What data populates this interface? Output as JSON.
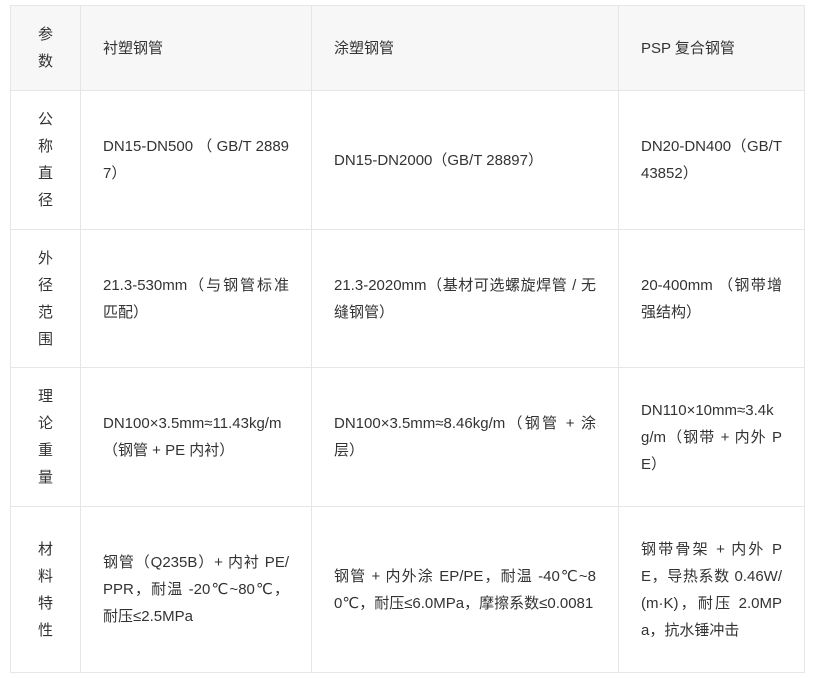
{
  "table": {
    "headers": [
      "参数",
      "衬塑钢管",
      "涂塑钢管",
      "PSP 复合钢管"
    ],
    "rows": [
      {
        "param": "公称直径",
        "cells": [
          "DN15-DN500 （ GB/T 28897）",
          "DN15-DN2000（GB/T 28897）",
          "DN20-DN400（GB/T 43852）"
        ]
      },
      {
        "param": "外径范围",
        "cells": [
          "21.3-530mm（与钢管标准匹配）",
          "21.3-2020mm（基材可选螺旋焊管 / 无缝钢管）",
          "20-400mm （钢带增强结构）"
        ]
      },
      {
        "param": "理论重量",
        "cells": [
          "DN100×3.5mm≈11.43kg/m（钢管 + PE 内衬）",
          "DN100×3.5mm≈8.46kg/m（钢管 + 涂层）",
          "DN110×10mm≈3.4kg/m（钢带 + 内外 PE）"
        ]
      },
      {
        "param": "材料特性",
        "cells": [
          "钢管（Q235B）+ 内衬 PE/PPR，耐温 -20℃~80℃，耐压≤2.5MPa",
          "钢管 + 内外涂 EP/PE，耐温 -40℃~80℃，耐压≤6.0MPa，摩擦系数≤0.0081",
          "钢带骨架 + 内外 PE，导热系数 0.46W/(m·K)，耐压 2.0MPa，抗水锤冲击"
        ]
      }
    ]
  }
}
